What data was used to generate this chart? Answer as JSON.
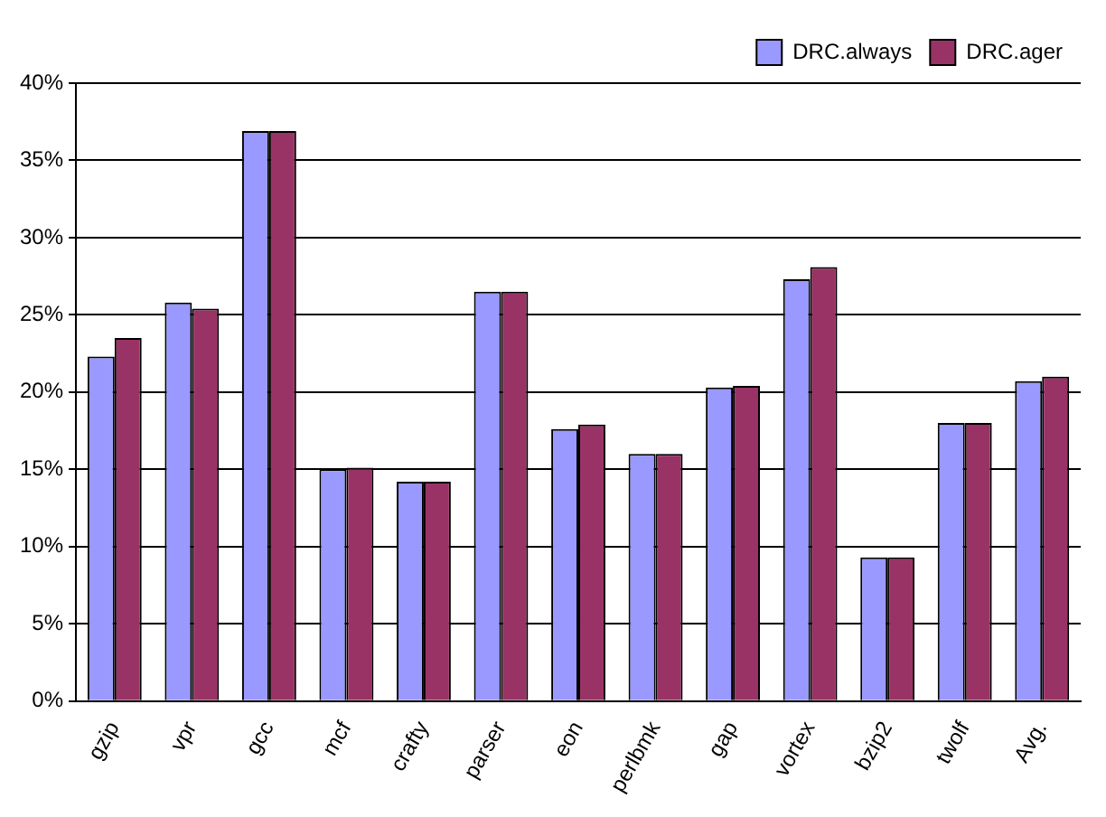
{
  "chart_data": {
    "type": "bar",
    "categories": [
      "gzip",
      "vpr",
      "gcc",
      "mcf",
      "crafty",
      "parser",
      "eon",
      "perlbmk",
      "gap",
      "vortex",
      "bzip2",
      "twolf",
      "Avg."
    ],
    "series": [
      {
        "name": "DRC.always",
        "color": "#9999ff",
        "values": [
          22.3,
          25.8,
          36.9,
          15.0,
          14.2,
          26.5,
          17.6,
          16.0,
          20.3,
          27.3,
          9.3,
          18.0,
          20.7
        ]
      },
      {
        "name": "DRC.ager",
        "color": "#993366",
        "values": [
          23.5,
          25.4,
          36.9,
          15.1,
          14.2,
          26.5,
          17.9,
          16.0,
          20.4,
          28.1,
          9.3,
          18.0,
          21.0
        ]
      }
    ],
    "ylim": [
      0,
      40
    ],
    "yticks": [
      {
        "value": 0,
        "label": "0%"
      },
      {
        "value": 5,
        "label": "5%"
      },
      {
        "value": 10,
        "label": "10%"
      },
      {
        "value": 15,
        "label": "15%"
      },
      {
        "value": 20,
        "label": "20%"
      },
      {
        "value": 25,
        "label": "25%"
      },
      {
        "value": 30,
        "label": "30%"
      },
      {
        "value": 35,
        "label": "35%"
      },
      {
        "value": 40,
        "label": "40%"
      }
    ],
    "grid": "y",
    "legend": "top right"
  }
}
